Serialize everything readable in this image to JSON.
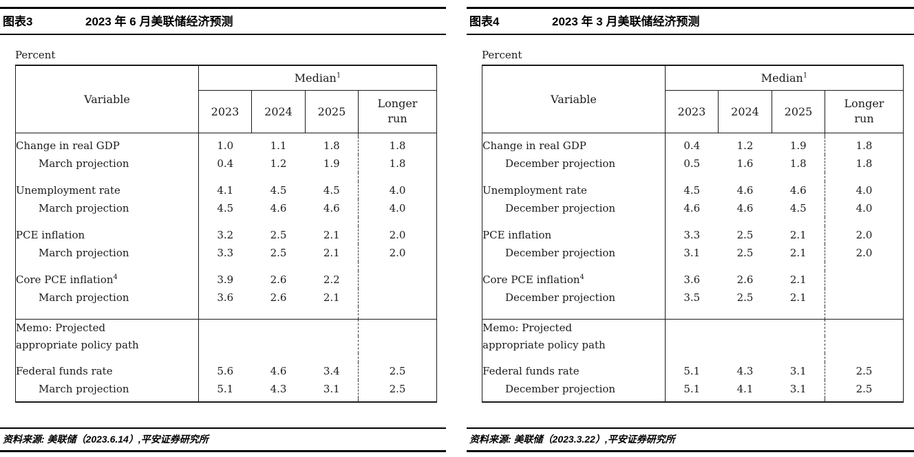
{
  "panels": [
    {
      "header": {
        "tag": "图表3",
        "title": "2023 年 6 月美联储经济预测"
      },
      "unit_label": "Percent",
      "table": {
        "variable_header": "Variable",
        "median_label": "Median",
        "median_sup": "1",
        "year_headers": [
          "2023",
          "2024",
          "2025"
        ],
        "longer_run_header": "Longer\nrun",
        "rows": [
          {
            "spacer": "sm"
          },
          {
            "label": "Change in real GDP",
            "values": [
              "1.0",
              "1.1",
              "1.8",
              "1.8"
            ]
          },
          {
            "label": "March projection",
            "indent": true,
            "values": [
              "0.4",
              "1.2",
              "1.9",
              "1.8"
            ]
          },
          {
            "spacer": "md"
          },
          {
            "label": "Unemployment rate",
            "values": [
              "4.1",
              "4.5",
              "4.5",
              "4.0"
            ]
          },
          {
            "label": "March projection",
            "indent": true,
            "values": [
              "4.5",
              "4.6",
              "4.6",
              "4.0"
            ]
          },
          {
            "spacer": "md"
          },
          {
            "label": "PCE inflation",
            "values": [
              "3.2",
              "2.5",
              "2.1",
              "2.0"
            ]
          },
          {
            "label": "March projection",
            "indent": true,
            "values": [
              "3.3",
              "2.5",
              "2.1",
              "2.0"
            ]
          },
          {
            "spacer": "md"
          },
          {
            "label": "Core PCE inflation",
            "sup": "4",
            "values": [
              "3.9",
              "2.6",
              "2.2",
              ""
            ]
          },
          {
            "label": "March projection",
            "indent": true,
            "values": [
              "3.6",
              "2.6",
              "2.1",
              ""
            ]
          },
          {
            "spacer": "lg"
          },
          {
            "label": "Memo: Projected",
            "memo": true,
            "rule_above": true,
            "values": [
              "",
              "",
              "",
              ""
            ]
          },
          {
            "label": "appropriate policy path",
            "memo": true,
            "values": [
              "",
              "",
              "",
              ""
            ]
          },
          {
            "spacer": "md"
          },
          {
            "label": "Federal funds rate",
            "values": [
              "5.6",
              "4.6",
              "3.4",
              "2.5"
            ]
          },
          {
            "label": "March projection",
            "indent": true,
            "values": [
              "5.1",
              "4.3",
              "3.1",
              "2.5"
            ]
          },
          {
            "spacer": "sm"
          }
        ]
      },
      "source": "资料来源: 美联储（2023.6.14）,平安证券研究所"
    },
    {
      "header": {
        "tag": "图表4",
        "title": "2023 年 3 月美联储经济预测"
      },
      "unit_label": "Percent",
      "table": {
        "variable_header": "Variable",
        "median_label": "Median",
        "median_sup": "1",
        "year_headers": [
          "2023",
          "2024",
          "2025"
        ],
        "longer_run_header": "Longer\nrun",
        "rows": [
          {
            "spacer": "sm"
          },
          {
            "label": "Change in real GDP",
            "values": [
              "0.4",
              "1.2",
              "1.9",
              "1.8"
            ]
          },
          {
            "label": "December projection",
            "indent": true,
            "values": [
              "0.5",
              "1.6",
              "1.8",
              "1.8"
            ]
          },
          {
            "spacer": "md"
          },
          {
            "label": "Unemployment rate",
            "values": [
              "4.5",
              "4.6",
              "4.6",
              "4.0"
            ]
          },
          {
            "label": "December projection",
            "indent": true,
            "values": [
              "4.6",
              "4.6",
              "4.5",
              "4.0"
            ]
          },
          {
            "spacer": "md"
          },
          {
            "label": "PCE inflation",
            "values": [
              "3.3",
              "2.5",
              "2.1",
              "2.0"
            ]
          },
          {
            "label": "December projection",
            "indent": true,
            "values": [
              "3.1",
              "2.5",
              "2.1",
              "2.0"
            ]
          },
          {
            "spacer": "md"
          },
          {
            "label": "Core PCE inflation",
            "sup": "4",
            "values": [
              "3.6",
              "2.6",
              "2.1",
              ""
            ]
          },
          {
            "label": "December projection",
            "indent": true,
            "values": [
              "3.5",
              "2.5",
              "2.1",
              ""
            ]
          },
          {
            "spacer": "lg"
          },
          {
            "label": "Memo: Projected",
            "memo": true,
            "rule_above": true,
            "values": [
              "",
              "",
              "",
              ""
            ]
          },
          {
            "label": "appropriate policy path",
            "memo": true,
            "values": [
              "",
              "",
              "",
              ""
            ]
          },
          {
            "spacer": "md"
          },
          {
            "label": "Federal funds rate",
            "values": [
              "5.1",
              "4.3",
              "3.1",
              "2.5"
            ]
          },
          {
            "label": "December projection",
            "indent": true,
            "values": [
              "5.1",
              "4.1",
              "3.1",
              "2.5"
            ]
          },
          {
            "spacer": "sm"
          }
        ]
      },
      "source": "资料来源: 美联储（2023.3.22）,平安证券研究所"
    }
  ]
}
